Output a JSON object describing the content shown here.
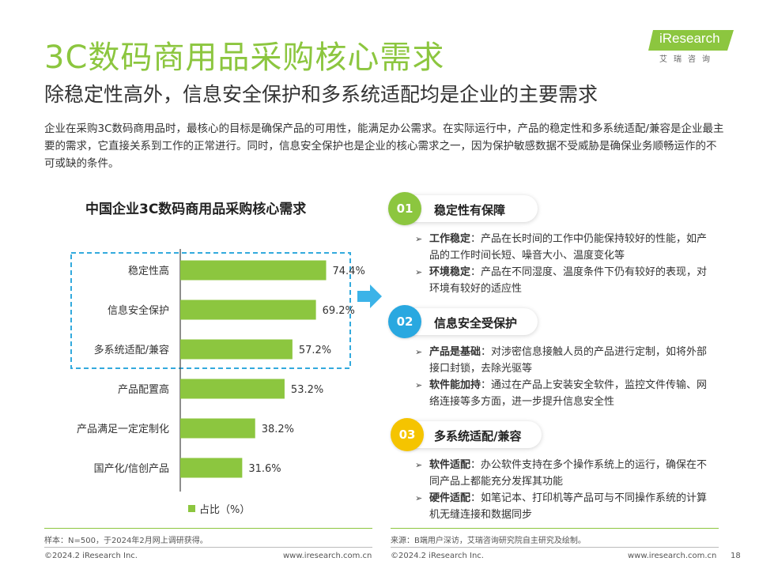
{
  "title": "3C数码商用品采购核心需求",
  "subtitle": "除稳定性高外，信息安全保护和多系统适配均是企业的主要需求",
  "intro": "企业在采购3C数码商用品时，最核心的目标是确保产品的可用性，能满足办公需求。在实际运行中，产品的稳定性和多系统适配/兼容是企业最主要的需求，它直接关系到工作的正常进行。同时，信息安全保护也是企业的核心需求之一，因为保护敏感数据不受威胁是确保业务顺畅运作的不可或缺的条件。",
  "logo": {
    "brand": "iResearch",
    "sub": "艾瑞咨询"
  },
  "chart_data": {
    "type": "bar",
    "orientation": "horizontal",
    "title": "中国企业3C数码商用品采购核心需求",
    "categories": [
      "稳定性高",
      "信息安全保护",
      "多系统适配/兼容",
      "产品配置高",
      "产品满足一定定制化",
      "国产化/信创产品"
    ],
    "values": [
      74.4,
      69.2,
      57.2,
      53.2,
      38.2,
      31.6
    ],
    "labels": [
      "74.4%",
      "69.2%",
      "57.2%",
      "53.2%",
      "38.2%",
      "31.6%"
    ],
    "unit": "%",
    "xlim": [
      0,
      100
    ],
    "highlighted_count": 3,
    "legend": {
      "label": "占比（%）",
      "placement": "bottom"
    },
    "bar_color": "#8cc63f",
    "highlight_border_color": "#33aadd"
  },
  "sections": [
    {
      "number": "01",
      "title": "稳定性有保障",
      "color": "#8cc63f",
      "bullets": [
        {
          "key": "工作稳定",
          "text": "：产品在长时间的工作中仍能保持较好的性能，如产品的工作时间长短、噪音大小、温度变化等"
        },
        {
          "key": "环境稳定",
          "text": "：产品在不同湿度、温度条件下仍有较好的表现，对环境有较好的适应性"
        }
      ]
    },
    {
      "number": "02",
      "title": "信息安全受保护",
      "color": "#29a8e0",
      "bullets": [
        {
          "key": "产品是基础",
          "text": "：对涉密信息接触人员的产品进行定制，如将外部接口封锁，去除光驱等"
        },
        {
          "key": "软件能加持",
          "text": "：通过在产品上安装安全软件，监控文件传输、网络连接等多方面，进一步提升信息安全性"
        }
      ]
    },
    {
      "number": "03",
      "title": "多系统适配/兼容",
      "color": "#f5c400",
      "bullets": [
        {
          "key": "软件适配",
          "text": "：办公软件支持在多个操作系统上的运行，确保在不同产品上都能充分发挥其功能"
        },
        {
          "key": "硬件适配",
          "text": "：如笔记本、打印机等产品可与不同操作系统的计算机无缝连接和数据同步"
        }
      ]
    }
  ],
  "footer": {
    "sample_note": "样本：N=500，于2024年2月网上调研获得。",
    "source_note": "来源：B端用户深访，艾瑞咨询研究院自主研究及绘制。",
    "copyright_left": "©2024.2 iResearch Inc.",
    "url_left": "www.iresearch.com.cn",
    "copyright_right": "©2024.2 iResearch Inc.",
    "url_right": "www.iresearch.com.cn",
    "page_number": "18"
  },
  "colors": {
    "brand_green": "#8cc63f",
    "blue": "#29a8e0",
    "yellow": "#f5c400",
    "arrow": "#3bb3e8"
  },
  "icons": [
    "right-arrow-icon",
    "triangle-bullet-icon"
  ]
}
